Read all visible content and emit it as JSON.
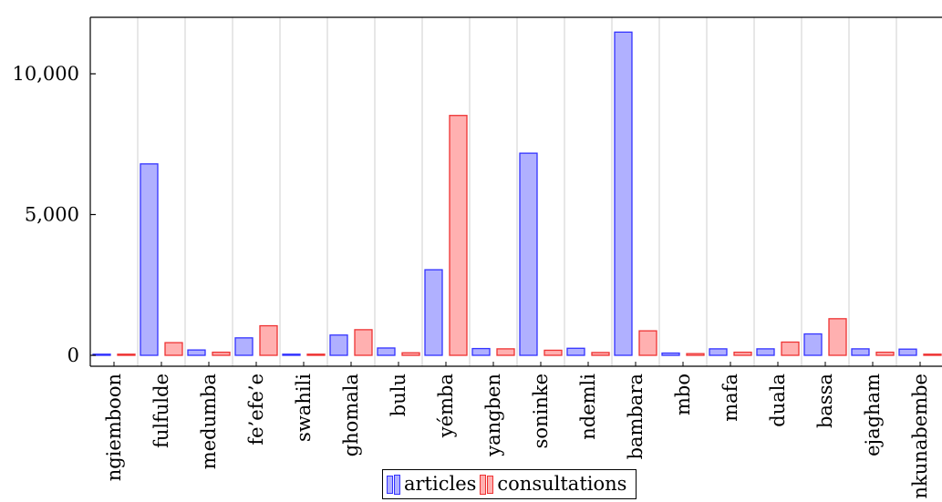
{
  "chart_data": {
    "type": "bar",
    "title": "",
    "xlabel": "",
    "ylabel": "",
    "categories": [
      "ngiemboon",
      "fulfulde",
      "medumba",
      "fe’efe’e",
      "swahili",
      "ghomala",
      "bulu",
      "yémba",
      "yangben",
      "soninke",
      "ndemli",
      "bambara",
      "mbo",
      "mafa",
      "duala",
      "bassa",
      "ejagham",
      "nkunabembe"
    ],
    "series": [
      {
        "name": "articles",
        "color": "#b0b0ff",
        "stroke": "#3333ff",
        "values": [
          40,
          6800,
          190,
          620,
          40,
          720,
          260,
          3040,
          240,
          7180,
          250,
          11480,
          80,
          230,
          230,
          760,
          230,
          220
        ]
      },
      {
        "name": "consultations",
        "color": "#ffb0b0",
        "stroke": "#ee3333",
        "values": [
          40,
          450,
          110,
          1050,
          40,
          910,
          90,
          8520,
          230,
          180,
          100,
          870,
          60,
          110,
          470,
          1300,
          110,
          40
        ]
      }
    ],
    "ylim": [
      -390,
      12300
    ],
    "yticks": [
      0,
      5000,
      10000
    ],
    "ytick_labels": [
      "0",
      "5,000",
      "10,000"
    ],
    "grid": "vertical",
    "legend": "bottom-center"
  }
}
